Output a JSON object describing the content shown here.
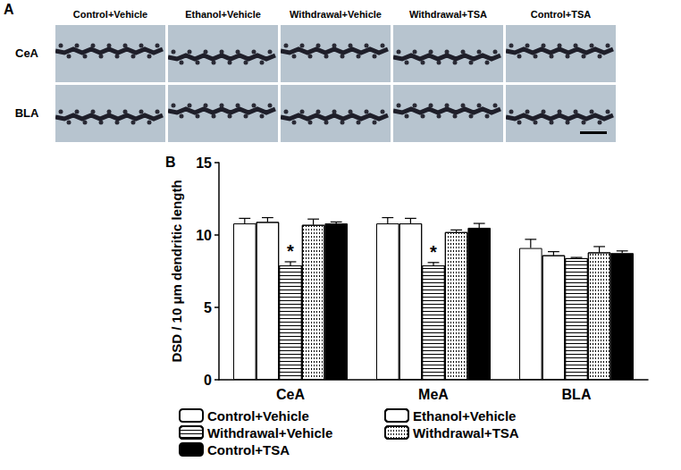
{
  "panel_a": {
    "label": "A",
    "columns": [
      "Control+Vehicle",
      "Ethanol+Vehicle",
      "Withdrawal+Vehicle",
      "Withdrawal+TSA",
      "Control+TSA"
    ],
    "rows": [
      "CeA",
      "BLA"
    ]
  },
  "chart_data": {
    "type": "bar",
    "title": "B",
    "y_label": "DSD / 10 μm dendritic length",
    "categories": [
      "CeA",
      "MeA",
      "BLA"
    ],
    "series": [
      {
        "name": "Control+Vehicle",
        "color": "#ffffff",
        "values": [
          10.8,
          10.8,
          9.1
        ],
        "errors": [
          0.35,
          0.4,
          0.6
        ]
      },
      {
        "name": "Ethanol+Vehicle",
        "color": "#ffffff",
        "values": [
          10.9,
          10.8,
          8.6
        ],
        "errors": [
          0.3,
          0.35,
          0.25
        ]
      },
      {
        "name": "Withdrawal+Vehicle",
        "color": "#ffffff",
        "values": [
          7.9,
          7.9,
          8.4
        ],
        "errors": [
          0.25,
          0.2,
          0.05
        ]
      },
      {
        "name": "Withdrawal+TSA",
        "color": "#ffffff",
        "values": [
          10.7,
          10.2,
          8.8
        ],
        "errors": [
          0.4,
          0.15,
          0.4
        ]
      },
      {
        "name": "Control+TSA",
        "color": "#000000",
        "values": [
          10.8,
          10.5,
          8.75
        ],
        "errors": [
          0.1,
          0.3,
          0.15
        ]
      }
    ],
    "annotations": [
      {
        "text": "*",
        "category": "CeA",
        "series": "Withdrawal+Vehicle"
      },
      {
        "text": "*",
        "category": "MeA",
        "series": "Withdrawal+Vehicle"
      }
    ],
    "ylim": [
      0,
      15
    ],
    "yticks": [
      0,
      5,
      10,
      15
    ],
    "grid": false,
    "legend": "bottom"
  }
}
